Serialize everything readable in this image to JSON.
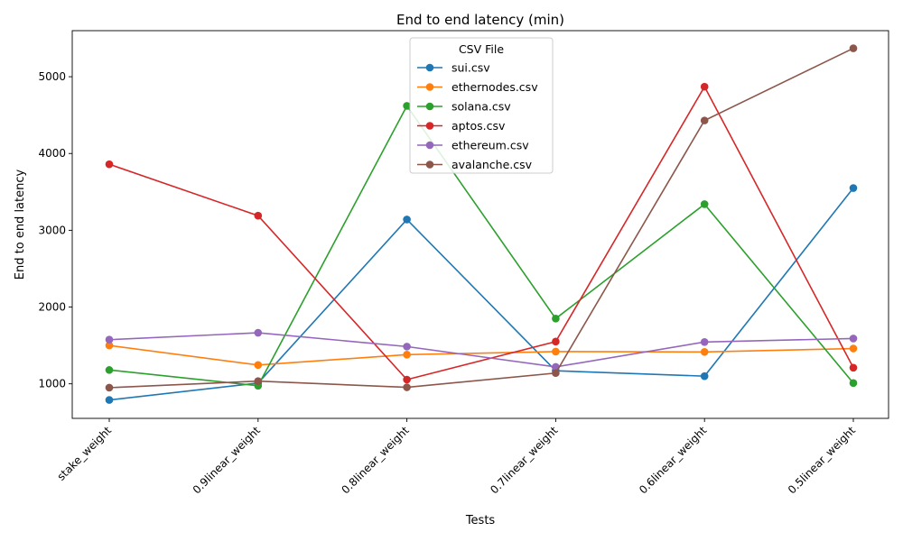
{
  "chart_data": {
    "type": "line",
    "title": "End to end latency (min)",
    "xlabel": "Tests",
    "ylabel": "End to end latency",
    "categories": [
      "stake_weight",
      "0.9linear_weight",
      "0.8linear_weight",
      "0.7linear_weight",
      "0.6linear_weight",
      "0.5linear_weight"
    ],
    "ylim": [
      550,
      5600
    ],
    "yticks": [
      1000,
      2000,
      3000,
      4000,
      5000
    ],
    "grid": false,
    "legend": {
      "title": "CSV File",
      "placement": "top-center"
    },
    "series": [
      {
        "name": "sui.csv",
        "color": "#1f77b4",
        "values": [
          790,
          1010,
          3140,
          1170,
          1100,
          3550
        ]
      },
      {
        "name": "ethernodes.csv",
        "color": "#ff7f0e",
        "values": [
          1500,
          1245,
          1380,
          1420,
          1415,
          1460
        ]
      },
      {
        "name": "solana.csv",
        "color": "#2ca02c",
        "values": [
          1180,
          975,
          4620,
          1850,
          3340,
          1010
        ]
      },
      {
        "name": "aptos.csv",
        "color": "#d62728",
        "values": [
          3860,
          3190,
          1055,
          1550,
          4870,
          1210
        ]
      },
      {
        "name": "ethereum.csv",
        "color": "#9467bd",
        "values": [
          1575,
          1665,
          1485,
          1220,
          1545,
          1590
        ]
      },
      {
        "name": "avalanche.csv",
        "color": "#8c564b",
        "values": [
          950,
          1035,
          955,
          1140,
          4430,
          5370
        ]
      }
    ]
  }
}
